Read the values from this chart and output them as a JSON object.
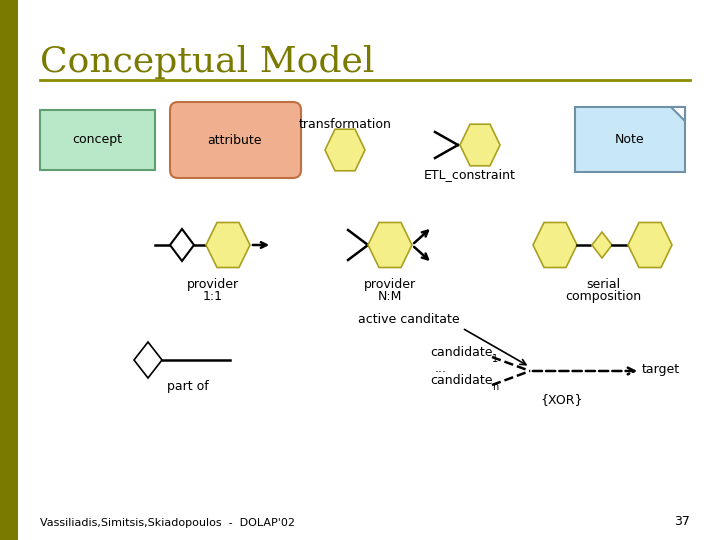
{
  "title": "Conceptual Model",
  "title_color": "#7a7a00",
  "title_fontsize": 26,
  "bg_color": "#ffffff",
  "footer_text": "Vassiliadis,Simitsis,Skiadopoulos  -  DOLAP'02",
  "footer_number": "37",
  "separator_color": "#8b8b00",
  "hexagon_yellow": "#f5ef8a",
  "hexagon_edge": "#aaa020",
  "concept_fc": "#b8e8c8",
  "concept_ec": "#60a070",
  "attribute_fc": "#f0b090",
  "attribute_ec": "#c07040",
  "note_fc": "#c8e8f8",
  "note_ec": "#7090a8"
}
